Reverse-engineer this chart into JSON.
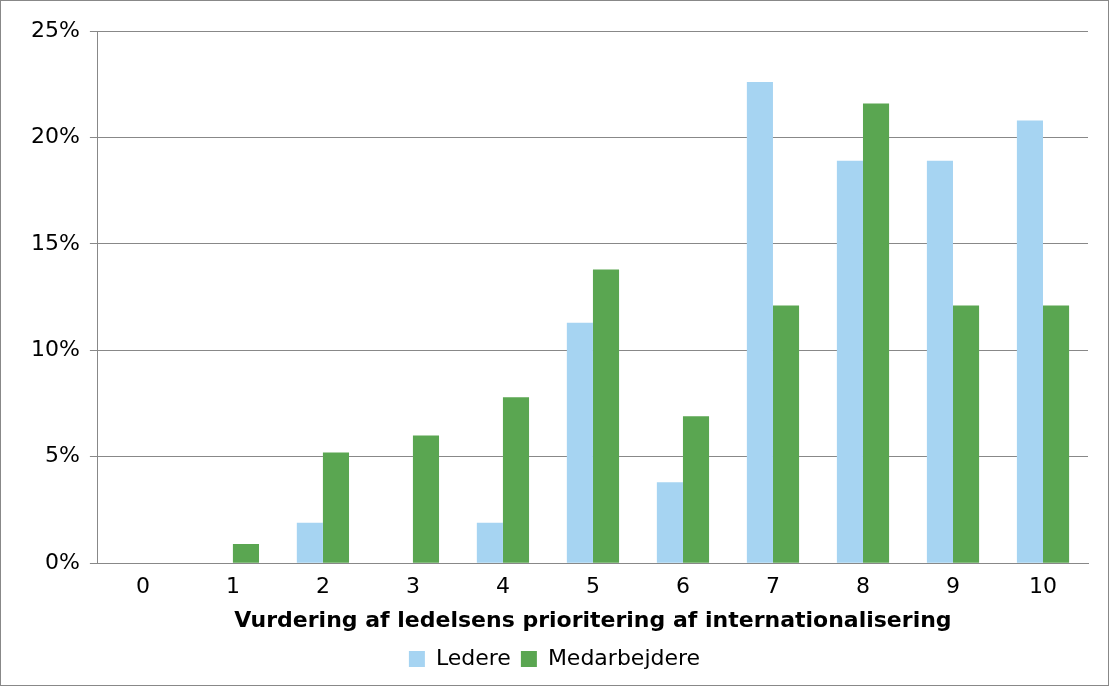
{
  "chart_data": {
    "type": "bar",
    "xlabel": "Vurdering af ledelsens prioritering af internationalisering",
    "categories": [
      "0",
      "1",
      "2",
      "3",
      "4",
      "5",
      "6",
      "7",
      "8",
      "9",
      "10"
    ],
    "series": [
      {
        "name": "Ledere",
        "color": "#a6d4f2",
        "values": [
          0,
          0,
          1.9,
          0,
          1.9,
          11.3,
          3.8,
          22.6,
          18.9,
          18.9,
          20.8
        ]
      },
      {
        "name": "Medarbejdere",
        "color": "#5aa651",
        "values": [
          0,
          0.9,
          5.2,
          6.0,
          7.8,
          13.8,
          6.9,
          12.1,
          21.6,
          12.1,
          12.1
        ]
      }
    ],
    "ylim": [
      0,
      25
    ],
    "yticks": [
      {
        "value": 0,
        "label": "0%"
      },
      {
        "value": 5,
        "label": "5%"
      },
      {
        "value": 10,
        "label": "10%"
      },
      {
        "value": 15,
        "label": "15%"
      },
      {
        "value": 20,
        "label": "20%"
      },
      {
        "value": 25,
        "label": "25%"
      }
    ],
    "grid": "y",
    "legend": "bottom"
  }
}
